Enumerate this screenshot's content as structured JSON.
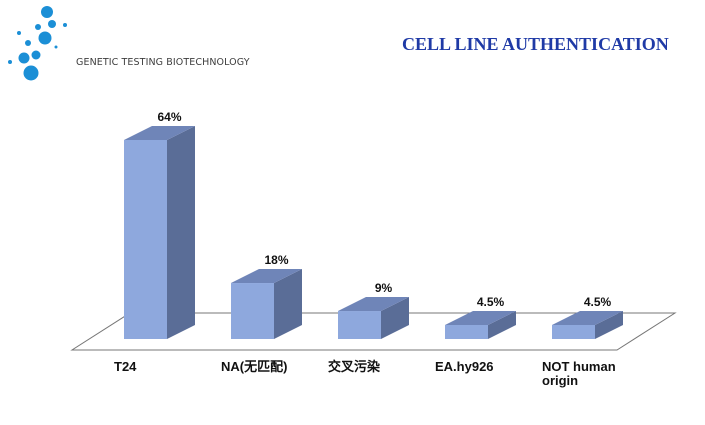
{
  "header": {
    "company": "GENETIC TESTING BIOTECHNOLOGY",
    "title": "CELL LINE AUTHENTICATION",
    "title_color": "#1f3aa6",
    "logo_color": "#1b8fd6"
  },
  "chart_data": {
    "type": "bar",
    "style": "3d",
    "categories": [
      "T24",
      "NA(无匹配)",
      "交叉污染",
      "EA.hy926",
      "NOT human origin"
    ],
    "values": [
      64,
      18,
      9,
      4.5,
      4.5
    ],
    "data_labels": [
      "64%",
      "18%",
      "9%",
      "4.5%",
      "4.5%"
    ],
    "ylim": [
      0,
      70
    ],
    "grid": false,
    "legend": "none",
    "colors": {
      "front": "#8ea8dd",
      "side": "#5a6d97",
      "top": "#6f85b8",
      "floor": "#ffffff"
    },
    "title": "",
    "xlabel": "",
    "ylabel": ""
  }
}
